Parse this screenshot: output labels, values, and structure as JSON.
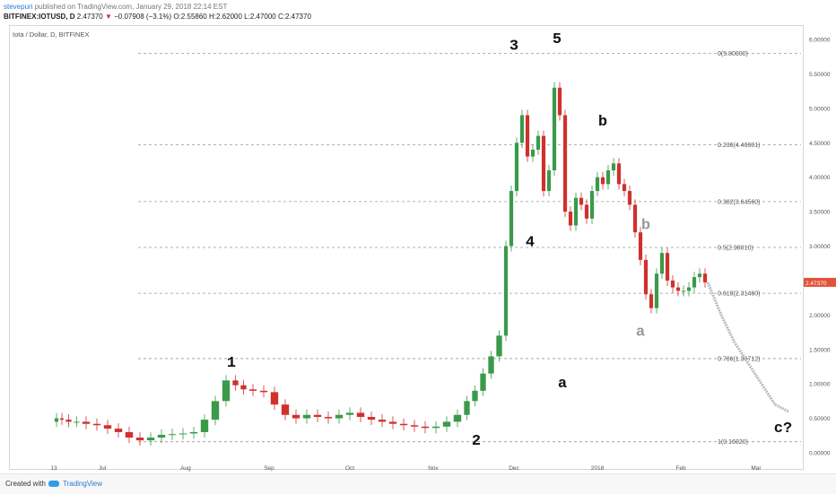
{
  "header": {
    "user": "stevepuri",
    "published_text": "published on TradingView.com, January 29, 2018 22:14 EST",
    "symbol": "BITFINEX:IOTUSD, D",
    "last": "2.47370",
    "change": "−0.07908 (−3.1%)",
    "open": "O:2.55860",
    "high": "H:2.62000",
    "low": "L:2.47000",
    "close": "C:2.47370"
  },
  "symbol_label": "Iota / Dollar, D, BITFINEX",
  "footer": {
    "created_with": "Created with",
    "brand": "TradingView"
  },
  "colors": {
    "up": "#3a9a4a",
    "down": "#d0312d",
    "projection": "#bbbbbb",
    "price_tag": "#e0533a",
    "grid_line": "#999999"
  },
  "chart_data": {
    "type": "line",
    "title": "Iota / Dollar, D, BITFINEX",
    "x_ticks": [
      "13",
      "Jul",
      "Aug",
      "Sep",
      "Oct",
      "Nov",
      "Dec",
      "2018",
      "Feb",
      "Mar"
    ],
    "y_ticks": [
      "0.00000",
      "0.50000",
      "1.00000",
      "1.50000",
      "2.00000",
      "2.50000",
      "3.00000",
      "3.50000",
      "4.00000",
      "4.50000",
      "5.00000",
      "5.50000",
      "6.00000"
    ],
    "ylim": [
      -0.1,
      6.2
    ],
    "last_price_tag": "2.47370",
    "fib_levels": [
      {
        "label": "0(5.80000)",
        "value": 5.8
      },
      {
        "label": "0.236(4.46901)",
        "value": 4.46901
      },
      {
        "label": "0.382(3.64560)",
        "value": 3.6456
      },
      {
        "label": "0.5(2.98010)",
        "value": 2.9801
      },
      {
        "label": "0.618(2.31460)",
        "value": 2.3146
      },
      {
        "label": "0.786(1.36712)",
        "value": 1.36712
      },
      {
        "label": "1(0.16020)",
        "value": 0.1602
      }
    ],
    "series": [
      {
        "values_description_x": "x in approximate days since 2017-06-13",
        "x": [
          0,
          2,
          4,
          7,
          10,
          14,
          18,
          22,
          26,
          30,
          34,
          38,
          42,
          46,
          50,
          54,
          58,
          62,
          66,
          69,
          72,
          76,
          80,
          84,
          88,
          92,
          96,
          100,
          104,
          108,
          112,
          116,
          120,
          124,
          128,
          132,
          136,
          140,
          144,
          148,
          152,
          155,
          158,
          161,
          164,
          167,
          169,
          171,
          173,
          175,
          177,
          179,
          181,
          183,
          185,
          187,
          189,
          191,
          193,
          195,
          197,
          199,
          201,
          203,
          205,
          207,
          209,
          211,
          213,
          215,
          217,
          219,
          221,
          223,
          225,
          227,
          229,
          231,
          233,
          235,
          237,
          239,
          241,
          243
        ],
        "values": [
          0.45,
          0.5,
          0.48,
          0.45,
          0.45,
          0.42,
          0.4,
          0.35,
          0.3,
          0.22,
          0.18,
          0.22,
          0.26,
          0.27,
          0.28,
          0.3,
          0.48,
          0.75,
          1.05,
          0.98,
          0.92,
          0.9,
          0.88,
          0.7,
          0.55,
          0.5,
          0.55,
          0.52,
          0.5,
          0.55,
          0.58,
          0.52,
          0.48,
          0.45,
          0.42,
          0.4,
          0.38,
          0.36,
          0.38,
          0.45,
          0.55,
          0.75,
          0.9,
          1.15,
          1.4,
          1.7,
          3.0,
          3.8,
          4.5,
          4.9,
          4.3,
          4.4,
          4.6,
          3.8,
          4.1,
          5.3,
          4.9,
          3.5,
          3.3,
          3.7,
          3.6,
          3.4,
          3.8,
          4.0,
          3.9,
          4.1,
          4.2,
          3.9,
          3.8,
          3.6,
          3.2,
          2.8,
          2.3,
          2.1,
          2.6,
          2.9,
          2.5,
          2.4,
          2.35,
          2.35,
          2.4,
          2.55,
          2.6,
          2.4737
        ]
      },
      {
        "x": [
          243,
          248,
          253,
          258,
          263,
          268,
          273
        ],
        "values": [
          2.4737,
          2.0,
          1.6,
          1.3,
          1.0,
          0.7,
          0.6
        ]
      }
    ],
    "wave_labels": [
      {
        "text": "1",
        "x": 66,
        "y": 1.25
      },
      {
        "text": "2",
        "x": 157,
        "y": 0.12
      },
      {
        "text": "3",
        "x": 171,
        "y": 5.85
      },
      {
        "text": "4",
        "x": 177,
        "y": 3.0
      },
      {
        "text": "5",
        "x": 187,
        "y": 5.95
      },
      {
        "text": "a",
        "x": 189,
        "y": 0.95
      },
      {
        "text": "b",
        "x": 204,
        "y": 4.75
      },
      {
        "text": "a",
        "x": 218,
        "y": 1.7
      },
      {
        "text": "b",
        "x": 220,
        "y": 3.25
      },
      {
        "text": "c?",
        "x": 271,
        "y": 0.3
      }
    ]
  }
}
